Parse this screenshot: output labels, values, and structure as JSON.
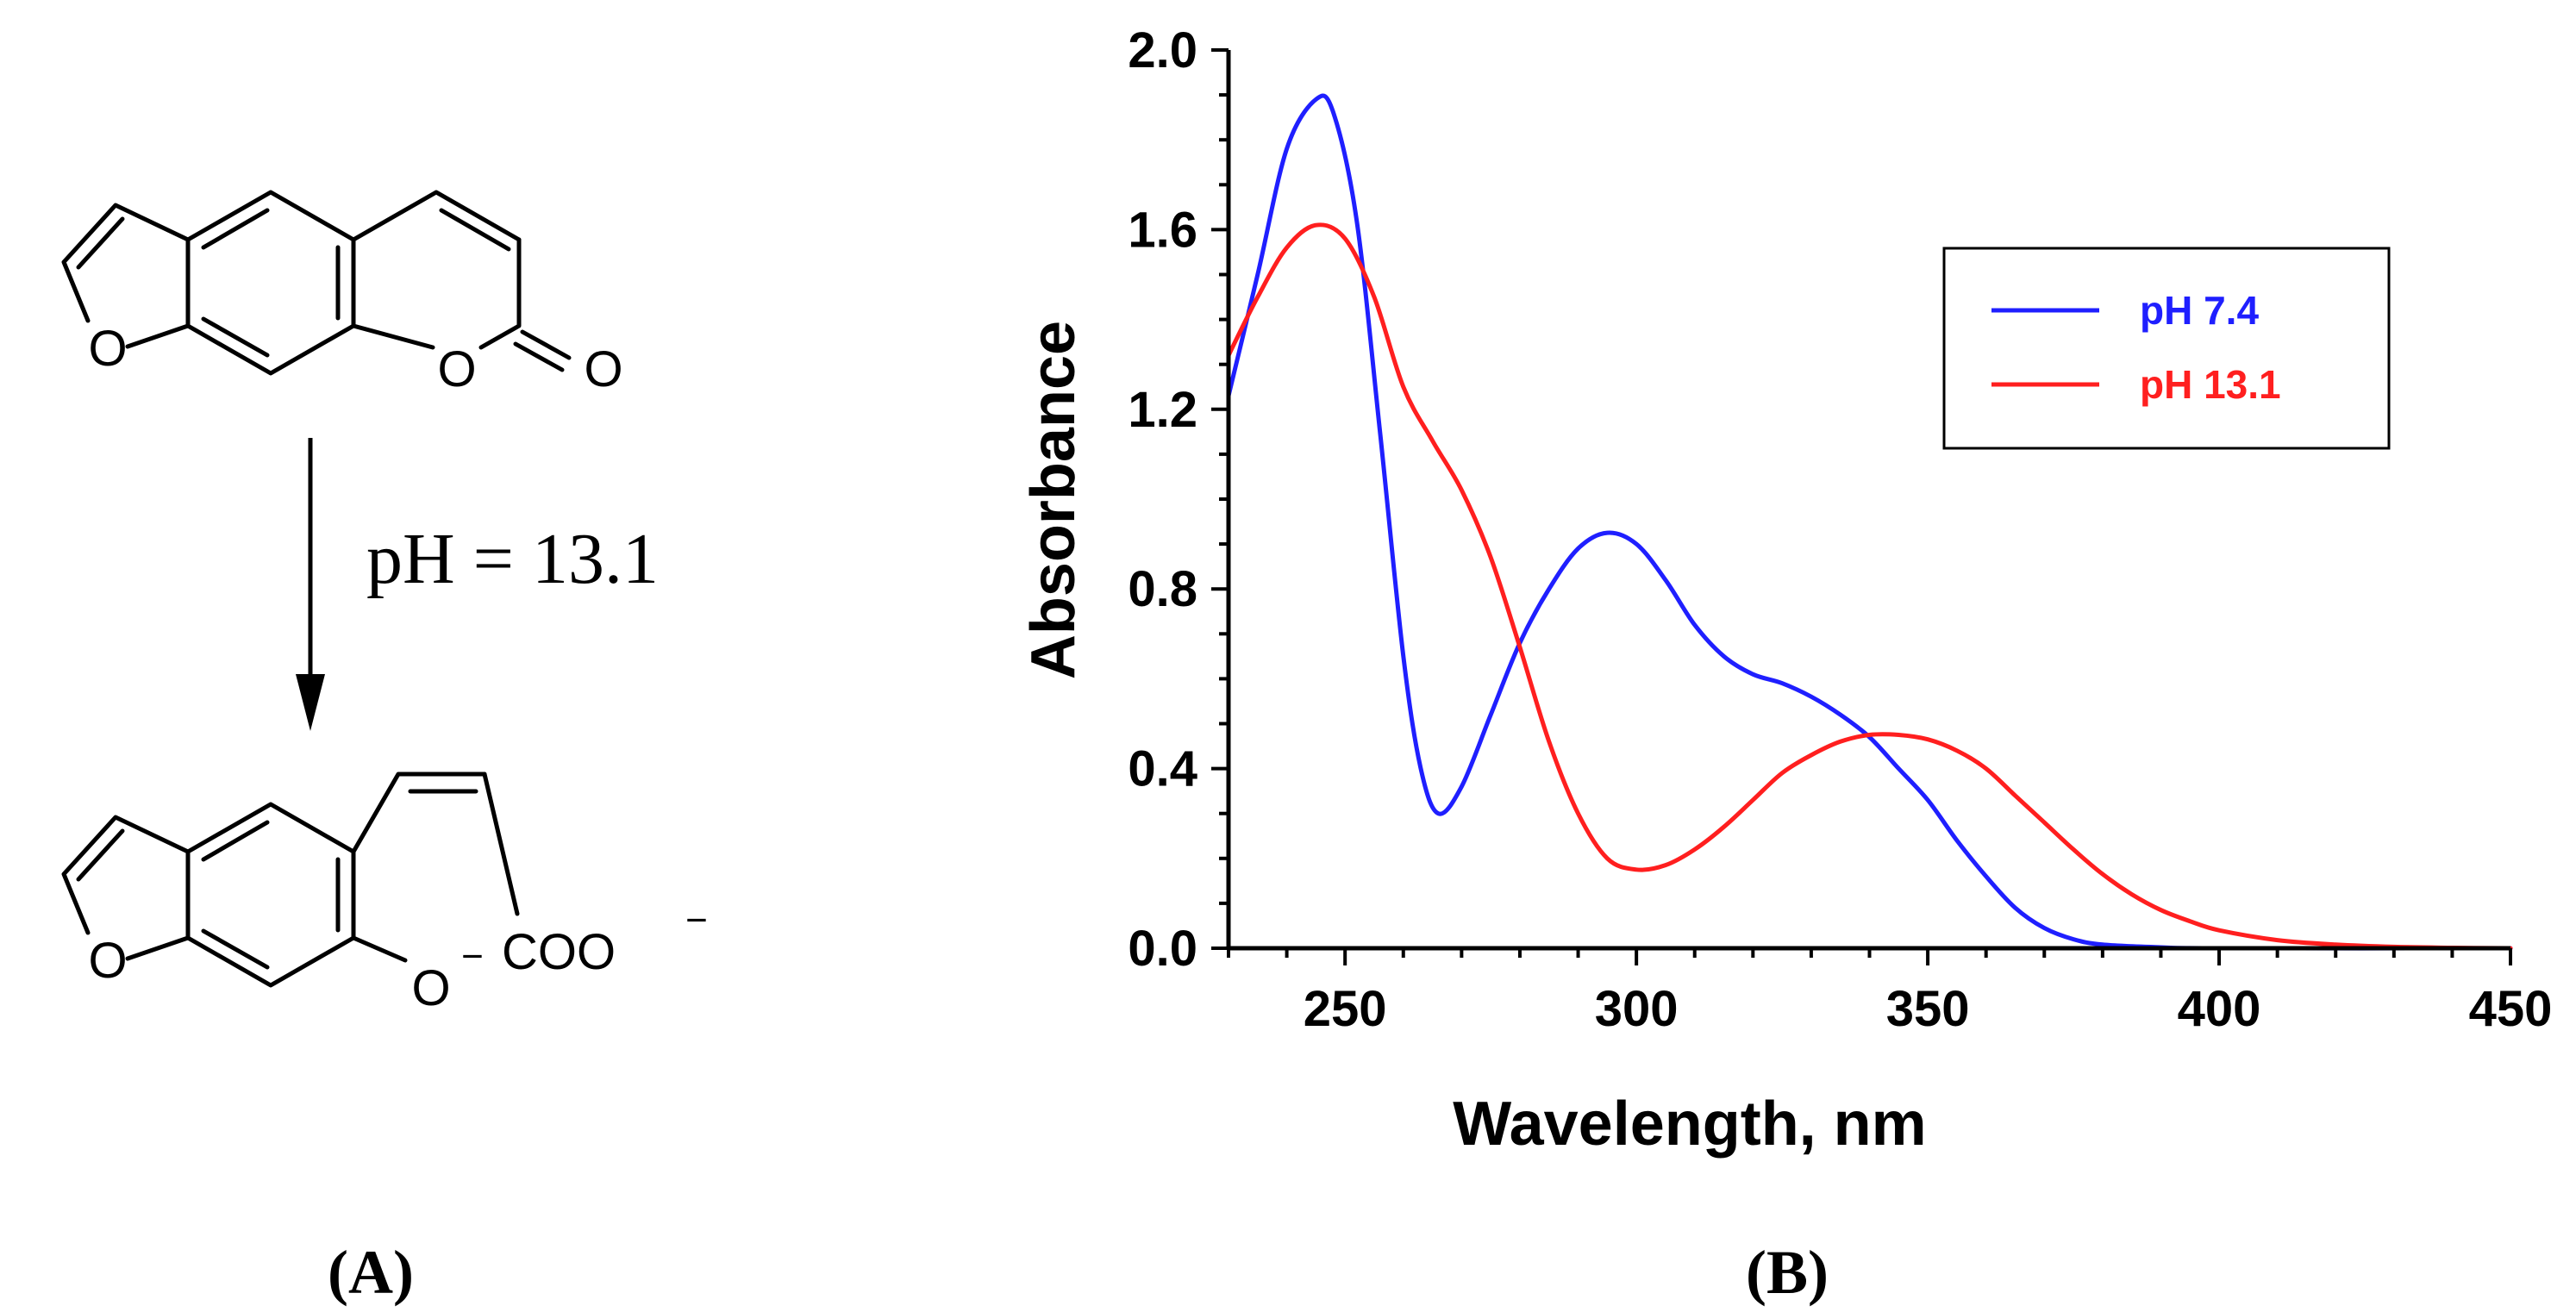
{
  "panel_a": {
    "label": "(A)",
    "reaction_condition": "pH = 13.1",
    "atom_o": "O",
    "product_group": "COO",
    "charge": "−"
  },
  "panel_b": {
    "label": "(B)"
  },
  "chart_data": {
    "type": "line",
    "title": "",
    "xlabel": "Wavelength, nm",
    "ylabel": "Absorbance",
    "xlim": [
      230,
      450
    ],
    "ylim": [
      0,
      2.0
    ],
    "x_ticks": [
      250,
      300,
      350,
      400,
      450
    ],
    "y_ticks": [
      0.0,
      0.4,
      0.8,
      1.2,
      1.6,
      2.0
    ],
    "x_tick_labels": [
      "250",
      "300",
      "350",
      "400",
      "450"
    ],
    "y_tick_labels": [
      "0.0",
      "0.4",
      "0.8",
      "1.2",
      "1.6",
      "2.0"
    ],
    "legend_position": "top-right",
    "series": [
      {
        "name": "pH 7.4",
        "color": "#1f1fff",
        "points": [
          [
            230,
            1.23
          ],
          [
            235,
            1.5
          ],
          [
            240,
            1.78
          ],
          [
            245,
            1.89
          ],
          [
            248,
            1.86
          ],
          [
            252,
            1.62
          ],
          [
            256,
            1.15
          ],
          [
            260,
            0.65
          ],
          [
            263,
            0.4
          ],
          [
            266,
            0.3
          ],
          [
            270,
            0.36
          ],
          [
            275,
            0.52
          ],
          [
            280,
            0.68
          ],
          [
            285,
            0.8
          ],
          [
            290,
            0.89
          ],
          [
            295,
            0.925
          ],
          [
            300,
            0.9
          ],
          [
            305,
            0.82
          ],
          [
            310,
            0.72
          ],
          [
            315,
            0.65
          ],
          [
            320,
            0.61
          ],
          [
            325,
            0.59
          ],
          [
            330,
            0.56
          ],
          [
            335,
            0.52
          ],
          [
            340,
            0.47
          ],
          [
            345,
            0.4
          ],
          [
            350,
            0.33
          ],
          [
            355,
            0.24
          ],
          [
            360,
            0.16
          ],
          [
            365,
            0.09
          ],
          [
            370,
            0.045
          ],
          [
            375,
            0.02
          ],
          [
            380,
            0.008
          ],
          [
            390,
            0.002
          ],
          [
            400,
            0.0
          ],
          [
            450,
            0.0
          ]
        ]
      },
      {
        "name": "pH 13.1",
        "color": "#ff1f1f",
        "points": [
          [
            230,
            1.32
          ],
          [
            235,
            1.45
          ],
          [
            240,
            1.56
          ],
          [
            245,
            1.61
          ],
          [
            250,
            1.58
          ],
          [
            255,
            1.45
          ],
          [
            260,
            1.25
          ],
          [
            265,
            1.13
          ],
          [
            270,
            1.02
          ],
          [
            275,
            0.87
          ],
          [
            280,
            0.67
          ],
          [
            285,
            0.46
          ],
          [
            290,
            0.3
          ],
          [
            295,
            0.2
          ],
          [
            300,
            0.175
          ],
          [
            305,
            0.185
          ],
          [
            310,
            0.22
          ],
          [
            315,
            0.27
          ],
          [
            320,
            0.33
          ],
          [
            325,
            0.39
          ],
          [
            330,
            0.43
          ],
          [
            335,
            0.46
          ],
          [
            340,
            0.475
          ],
          [
            345,
            0.475
          ],
          [
            350,
            0.465
          ],
          [
            355,
            0.44
          ],
          [
            360,
            0.4
          ],
          [
            365,
            0.34
          ],
          [
            370,
            0.28
          ],
          [
            375,
            0.22
          ],
          [
            380,
            0.165
          ],
          [
            385,
            0.12
          ],
          [
            390,
            0.085
          ],
          [
            395,
            0.06
          ],
          [
            400,
            0.04
          ],
          [
            410,
            0.018
          ],
          [
            420,
            0.008
          ],
          [
            430,
            0.003
          ],
          [
            440,
            0.001
          ],
          [
            450,
            0.0
          ]
        ]
      }
    ]
  }
}
